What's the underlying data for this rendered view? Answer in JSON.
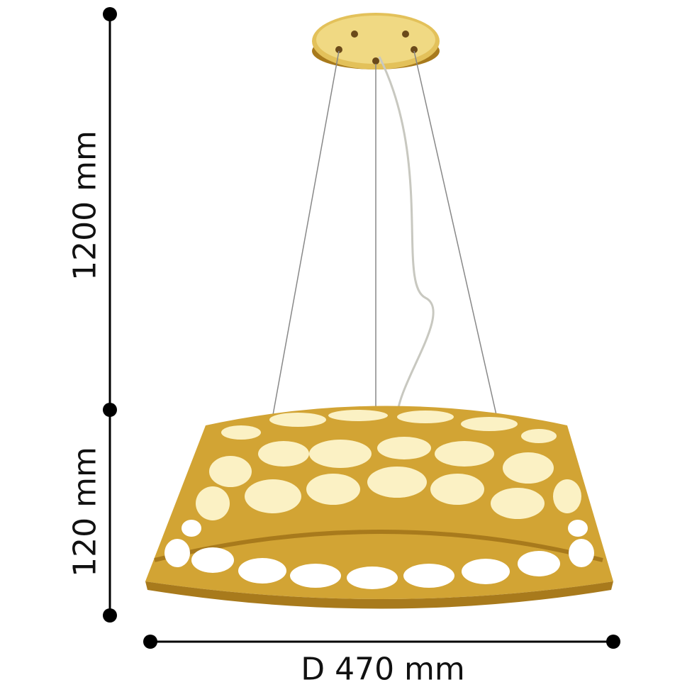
{
  "dimensions": {
    "total_height": "1200 mm",
    "shade_height": "120 mm",
    "diameter": "D 470 mm"
  },
  "colors": {
    "gold": "#d2a434",
    "gold_dark": "#a87a1c",
    "diffuser": "#fbf6dc",
    "dimension_line": "#000000"
  }
}
